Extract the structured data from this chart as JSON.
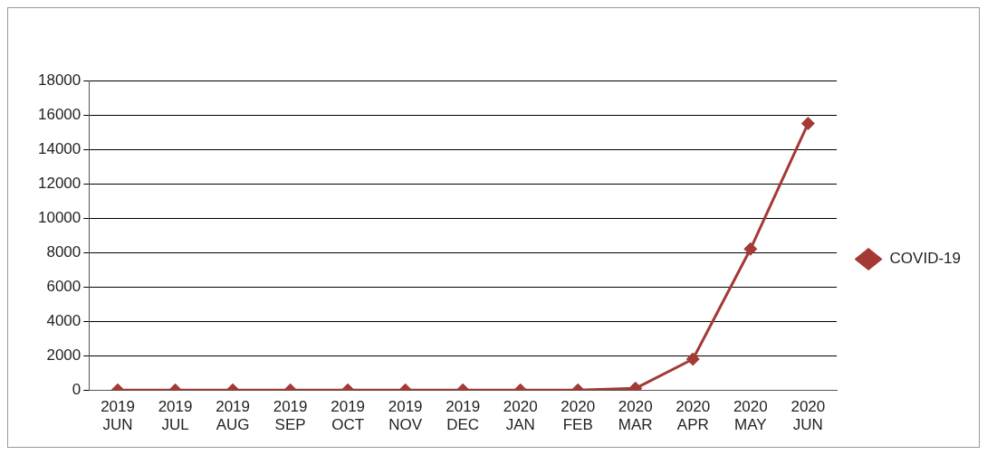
{
  "chart_data": {
    "type": "line",
    "categories": [
      "2019 JUN",
      "2019 JUL",
      "2019 AUG",
      "2019 SEP",
      "2019 OCT",
      "2019 NOV",
      "2019 DEC",
      "2020 JAN",
      "2020 FEB",
      "2020 MAR",
      "2020 APR",
      "2020 MAY",
      "2020 JUN"
    ],
    "series": [
      {
        "name": "COVID-19",
        "color": "#a33a35",
        "values": [
          0,
          0,
          0,
          0,
          0,
          0,
          0,
          0,
          0,
          100,
          1800,
          8200,
          15500
        ]
      }
    ],
    "ylim": [
      0,
      18000
    ],
    "yticks": [
      0,
      2000,
      4000,
      6000,
      8000,
      10000,
      12000,
      14000,
      16000,
      18000
    ],
    "grid": "y",
    "legend": "right",
    "marker": "diamond",
    "line_style": "solid"
  }
}
